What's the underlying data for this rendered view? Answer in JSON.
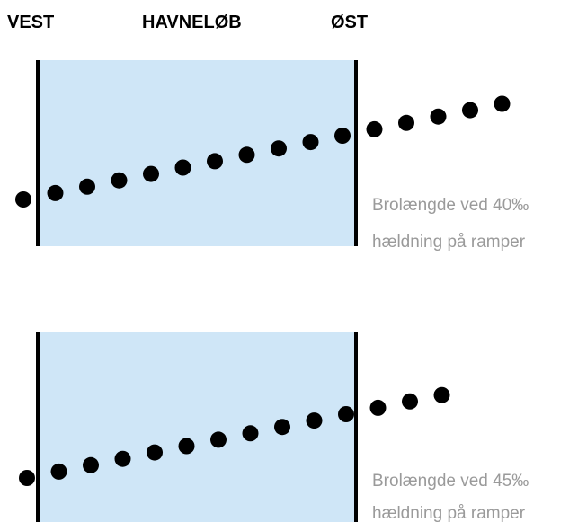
{
  "headers": {
    "west": "VEST",
    "harbor": "HAVNELØB",
    "east": "ØST"
  },
  "panels": [
    {
      "caption_line1": "Brolængde ved 40‰",
      "caption_line2": "hældning på ramper",
      "dot_count": 16
    },
    {
      "caption_line1": "Brolængde ved 45‰",
      "caption_line2": "hældning på ramper",
      "dot_count": 14
    }
  ],
  "colors": {
    "water": "#cfe6f7",
    "line": "#000000",
    "dot": "#000000",
    "caption": "#9a9a9a"
  }
}
